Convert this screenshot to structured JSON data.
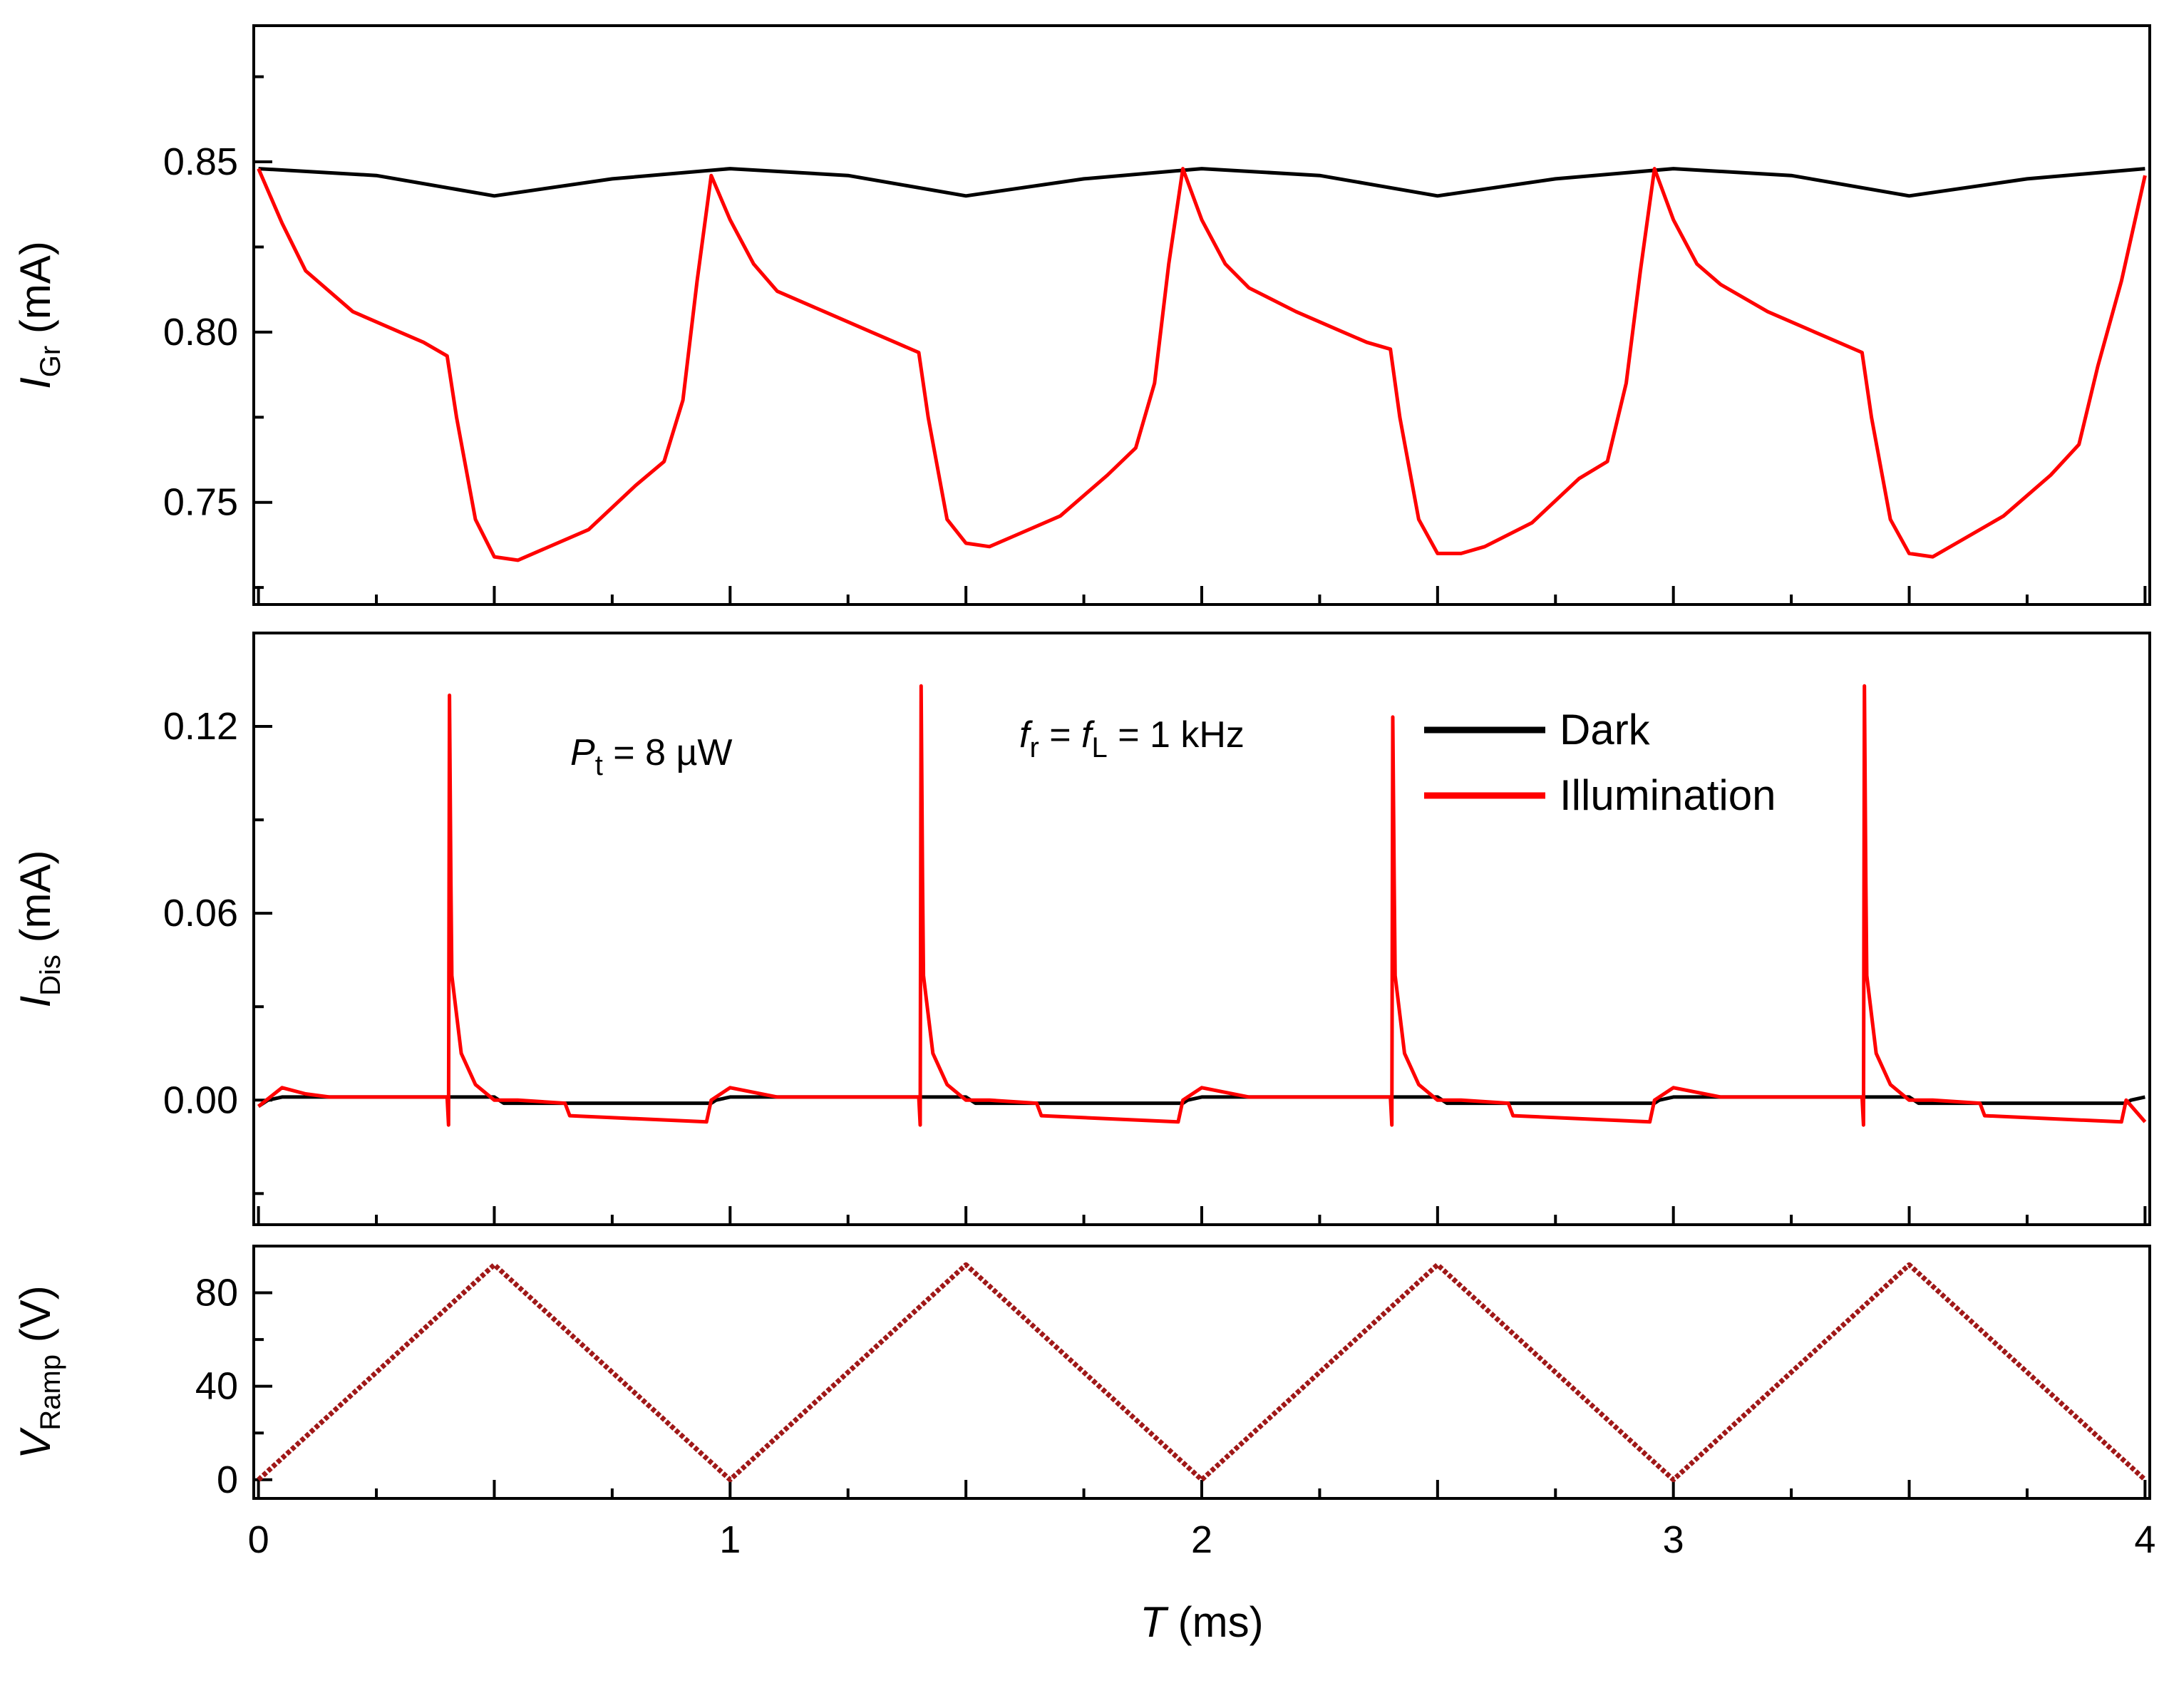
{
  "chart_data": [
    {
      "type": "line",
      "panel": "top",
      "ylabel": "I",
      "ylabel_sub": "Gr",
      "ylabel_unit": " (mA)",
      "xlim": [
        -0.01,
        4.01
      ],
      "ylim": [
        0.72,
        0.89
      ],
      "yticks": [
        0.75,
        0.8,
        0.85
      ],
      "ytick_labels": [
        "0.75",
        "0.80",
        "0.85"
      ],
      "series": [
        {
          "name": "Dark",
          "color": "#000000",
          "x": [
            0.0,
            0.25,
            0.5,
            0.75,
            1.0,
            1.25,
            1.5,
            1.75,
            2.0,
            2.25,
            2.5,
            2.75,
            3.0,
            3.25,
            3.5,
            3.75,
            4.0
          ],
          "y": [
            0.848,
            0.846,
            0.84,
            0.845,
            0.848,
            0.846,
            0.84,
            0.845,
            0.848,
            0.846,
            0.84,
            0.845,
            0.848,
            0.846,
            0.84,
            0.845,
            0.848
          ]
        },
        {
          "name": "Illumination",
          "color": "#ff0000",
          "x": [
            0.0,
            0.05,
            0.1,
            0.2,
            0.3,
            0.35,
            0.4,
            0.42,
            0.46,
            0.5,
            0.55,
            0.6,
            0.7,
            0.8,
            0.86,
            0.9,
            0.93,
            0.96,
            1.0,
            1.05,
            1.1,
            1.2,
            1.3,
            1.35,
            1.4,
            1.42,
            1.46,
            1.5,
            1.55,
            1.6,
            1.7,
            1.8,
            1.86,
            1.9,
            1.93,
            1.96,
            2.0,
            2.05,
            2.1,
            2.2,
            2.3,
            2.35,
            2.4,
            2.42,
            2.46,
            2.5,
            2.55,
            2.6,
            2.7,
            2.8,
            2.86,
            2.9,
            2.93,
            2.96,
            3.0,
            3.05,
            3.1,
            3.2,
            3.3,
            3.35,
            3.4,
            3.42,
            3.46,
            3.5,
            3.55,
            3.6,
            3.7,
            3.8,
            3.86,
            3.9,
            3.95,
            4.0
          ],
          "y": [
            0.848,
            0.832,
            0.818,
            0.806,
            0.8,
            0.797,
            0.793,
            0.775,
            0.745,
            0.734,
            0.733,
            0.736,
            0.742,
            0.755,
            0.762,
            0.78,
            0.815,
            0.846,
            0.833,
            0.82,
            0.812,
            0.806,
            0.8,
            0.797,
            0.794,
            0.775,
            0.745,
            0.738,
            0.737,
            0.74,
            0.746,
            0.758,
            0.766,
            0.785,
            0.82,
            0.848,
            0.833,
            0.82,
            0.813,
            0.806,
            0.8,
            0.797,
            0.795,
            0.775,
            0.745,
            0.735,
            0.735,
            0.737,
            0.744,
            0.757,
            0.762,
            0.785,
            0.818,
            0.848,
            0.833,
            0.82,
            0.814,
            0.806,
            0.8,
            0.797,
            0.794,
            0.775,
            0.745,
            0.735,
            0.734,
            0.738,
            0.746,
            0.758,
            0.767,
            0.79,
            0.815,
            0.846
          ]
        }
      ]
    },
    {
      "type": "line",
      "panel": "middle",
      "ylabel": "I",
      "ylabel_sub": "Dis",
      "ylabel_unit": " (mA)",
      "xlim": [
        -0.01,
        4.01
      ],
      "ylim": [
        -0.04,
        0.15
      ],
      "yticks": [
        0.0,
        0.06,
        0.12
      ],
      "ytick_labels": [
        "0.00",
        "0.06",
        "0.12"
      ],
      "annotations": [
        {
          "italic": "P",
          "sub": "t",
          "text": " = 8 µW"
        },
        {
          "italic1": "f",
          "sub1": "r",
          "mid": " = ",
          "italic2": "f",
          "sub2": "L",
          "text": " = 1 kHz"
        }
      ],
      "legend": {
        "position": "top-right",
        "entries": [
          "Dark",
          "Illumination"
        ]
      },
      "series": [
        {
          "name": "Dark",
          "color": "#000000",
          "x": [
            0.0,
            0.02,
            0.05,
            0.5,
            0.52,
            0.96,
            0.97,
            1.0,
            1.5,
            1.52,
            1.96,
            1.97,
            2.0,
            2.5,
            2.52,
            2.96,
            2.97,
            3.0,
            3.5,
            3.52,
            3.96,
            3.97,
            4.0
          ],
          "y": [
            -0.002,
            0.0,
            0.001,
            0.001,
            -0.001,
            -0.001,
            0.0,
            0.001,
            0.001,
            -0.001,
            -0.001,
            0.0,
            0.001,
            0.001,
            -0.001,
            -0.001,
            0.0,
            0.001,
            0.001,
            -0.001,
            -0.001,
            0.0,
            0.001
          ]
        },
        {
          "name": "Illumination",
          "color": "#ff0000",
          "x": [
            0.0,
            0.05,
            0.1,
            0.15,
            0.4,
            0.403,
            0.405,
            0.408,
            0.41,
            0.43,
            0.46,
            0.5,
            0.55,
            0.65,
            0.66,
            0.95,
            0.96,
            1.0,
            1.1,
            1.4,
            1.403,
            1.405,
            1.408,
            1.41,
            1.43,
            1.46,
            1.5,
            1.55,
            1.65,
            1.66,
            1.95,
            1.96,
            2.0,
            2.1,
            2.4,
            2.403,
            2.405,
            2.408,
            2.41,
            2.43,
            2.46,
            2.5,
            2.55,
            2.65,
            2.66,
            2.95,
            2.96,
            3.0,
            3.1,
            3.4,
            3.403,
            3.405,
            3.408,
            3.41,
            3.43,
            3.46,
            3.5,
            3.55,
            3.65,
            3.66,
            3.95,
            3.96,
            4.0
          ],
          "y": [
            -0.002,
            0.004,
            0.002,
            0.001,
            0.001,
            -0.008,
            0.13,
            0.07,
            0.04,
            0.015,
            0.005,
            0.0,
            0.0,
            -0.001,
            -0.005,
            -0.007,
            0.0,
            0.004,
            0.001,
            0.001,
            -0.008,
            0.133,
            0.07,
            0.04,
            0.015,
            0.005,
            0.0,
            0.0,
            -0.001,
            -0.005,
            -0.007,
            0.0,
            0.004,
            0.001,
            0.001,
            -0.008,
            0.123,
            0.07,
            0.04,
            0.015,
            0.005,
            0.0,
            0.0,
            -0.001,
            -0.005,
            -0.007,
            0.0,
            0.004,
            0.001,
            0.001,
            -0.008,
            0.133,
            0.07,
            0.04,
            0.015,
            0.005,
            0.0,
            0.0,
            -0.001,
            -0.005,
            -0.007,
            0.0,
            -0.007
          ]
        }
      ]
    },
    {
      "type": "line",
      "panel": "bottom",
      "ylabel": "V",
      "ylabel_sub": "Ramp",
      "ylabel_unit": " (V)",
      "xlabel": "T",
      "xlabel_unit": " (ms)",
      "xlim": [
        -0.01,
        4.01
      ],
      "ylim": [
        -8,
        100
      ],
      "yticks": [
        0,
        40,
        80
      ],
      "ytick_labels": [
        "0",
        "40",
        "80"
      ],
      "xticks": [
        0,
        1,
        2,
        3,
        4
      ],
      "xtick_labels": [
        "0",
        "1",
        "2",
        "3",
        "4"
      ],
      "series": [
        {
          "name": "Ramp",
          "color": "#a01818",
          "x": [
            0.0,
            0.5,
            1.0,
            1.5,
            2.0,
            2.5,
            3.0,
            3.5,
            4.0
          ],
          "y": [
            0,
            92,
            0,
            92,
            0,
            92,
            0,
            92,
            0
          ]
        }
      ]
    }
  ]
}
